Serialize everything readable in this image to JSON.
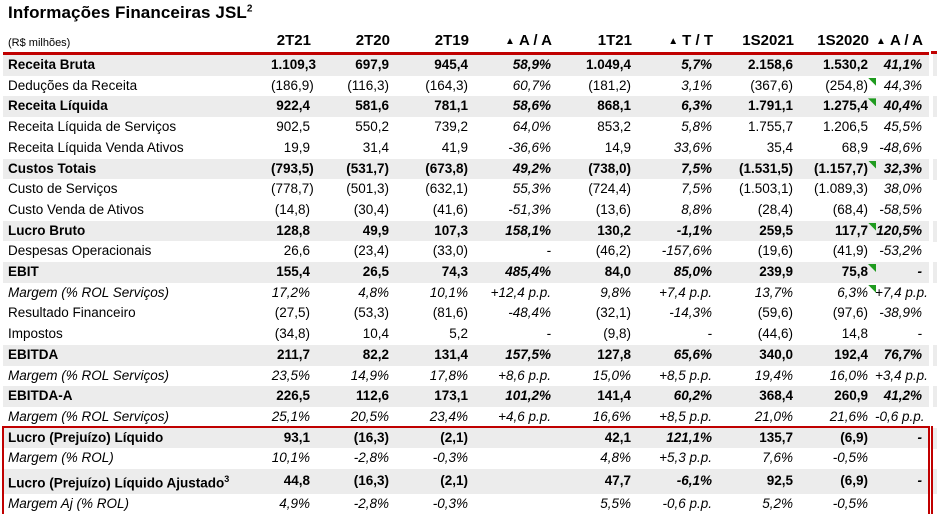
{
  "title": {
    "text": "Informações Financeiras JSL",
    "superscript": "2"
  },
  "unit_label": "(R$ milhões)",
  "delta_icon": "▲",
  "colors": {
    "accent_red": "#C00000",
    "row_shade": "#ECECEC",
    "flag_green": "#1F9B1F"
  },
  "columns": [
    {
      "label": "2T21",
      "delta": false
    },
    {
      "label": "2T20",
      "delta": false
    },
    {
      "label": "2T19",
      "delta": false
    },
    {
      "label": "A / A",
      "delta": true
    },
    {
      "label": "1T21",
      "delta": false
    },
    {
      "label": "T / T",
      "delta": true
    },
    {
      "label": "1S2021",
      "delta": false
    },
    {
      "label": "1S2020",
      "delta": false
    },
    {
      "label": "A / A",
      "delta": true
    }
  ],
  "rows": [
    {
      "label": "Receita Bruta",
      "bold": true,
      "shaded": true,
      "indent": 0,
      "values": [
        "1.109,3",
        "697,9",
        "945,4",
        "58,9%",
        "1.049,4",
        "5,7%",
        "2.158,6",
        "1.530,2",
        "41,1%"
      ]
    },
    {
      "label": "Deduções da Receita",
      "indent": 0,
      "flag_col": 7,
      "values": [
        "(186,9)",
        "(116,3)",
        "(164,3)",
        "60,7%",
        "(181,2)",
        "3,1%",
        "(367,6)",
        "(254,8)",
        "44,3%"
      ]
    },
    {
      "label": "Receita Líquida",
      "bold": true,
      "shaded": true,
      "indent": 0,
      "flag_col": 7,
      "values": [
        "922,4",
        "581,6",
        "781,1",
        "58,6%",
        "868,1",
        "6,3%",
        "1.791,1",
        "1.275,4",
        "40,4%"
      ]
    },
    {
      "label": "Receita Líquida de Serviços",
      "indent": 1,
      "values": [
        "902,5",
        "550,2",
        "739,2",
        "64,0%",
        "853,2",
        "5,8%",
        "1.755,7",
        "1.206,5",
        "45,5%"
      ]
    },
    {
      "label": "Receita Líquida Venda Ativos",
      "indent": 1,
      "values": [
        "19,9",
        "31,4",
        "41,9",
        "-36,6%",
        "14,9",
        "33,6%",
        "35,4",
        "68,9",
        "-48,6%"
      ]
    },
    {
      "label": "Custos Totais",
      "bold": true,
      "shaded": true,
      "indent": 0,
      "flag_col": 7,
      "values": [
        "(793,5)",
        "(531,7)",
        "(673,8)",
        "49,2%",
        "(738,0)",
        "7,5%",
        "(1.531,5)",
        "(1.157,7)",
        "32,3%"
      ]
    },
    {
      "label": "Custo de Serviços",
      "indent": 1,
      "values": [
        "(778,7)",
        "(501,3)",
        "(632,1)",
        "55,3%",
        "(724,4)",
        "7,5%",
        "(1.503,1)",
        "(1.089,3)",
        "38,0%"
      ]
    },
    {
      "label": "Custo Venda de Ativos",
      "indent": 1,
      "values": [
        "(14,8)",
        "(30,4)",
        "(41,6)",
        "-51,3%",
        "(13,6)",
        "8,8%",
        "(28,4)",
        "(68,4)",
        "-58,5%"
      ]
    },
    {
      "label": "Lucro Bruto",
      "bold": true,
      "shaded": true,
      "indent": 0,
      "flag_col": 7,
      "values": [
        "128,8",
        "49,9",
        "107,3",
        "158,1%",
        "130,2",
        "-1,1%",
        "259,5",
        "117,7",
        "120,5%"
      ]
    },
    {
      "label": "Despesas Operacionais",
      "indent": 0,
      "values": [
        "26,6",
        "(23,4)",
        "(33,0)",
        "-",
        "(46,2)",
        "-157,6%",
        "(19,6)",
        "(41,9)",
        "-53,2%"
      ]
    },
    {
      "label": "EBIT",
      "bold": true,
      "shaded": true,
      "indent": 0,
      "flag_col": 7,
      "values": [
        "155,4",
        "26,5",
        "74,3",
        "485,4%",
        "84,0",
        "85,0%",
        "239,9",
        "75,8",
        "-"
      ]
    },
    {
      "label": "Margem (% ROL Serviços)",
      "italic": true,
      "indent": 2,
      "flag_col": 7,
      "values": [
        "17,2%",
        "4,8%",
        "10,1%",
        "+12,4 p.p.",
        "9,8%",
        "+7,4 p.p.",
        "13,7%",
        "6,3%",
        "+7,4 p.p."
      ]
    },
    {
      "label": "Resultado Financeiro",
      "indent": 0,
      "values": [
        "(27,5)",
        "(53,3)",
        "(81,6)",
        "-48,4%",
        "(32,1)",
        "-14,3%",
        "(59,6)",
        "(97,6)",
        "-38,9%"
      ]
    },
    {
      "label": "Impostos",
      "indent": 0,
      "values": [
        "(34,8)",
        "10,4",
        "5,2",
        "-",
        "(9,8)",
        "-",
        "(44,6)",
        "14,8",
        "-"
      ]
    },
    {
      "label": "EBITDA",
      "bold": true,
      "shaded": true,
      "indent": 0,
      "values": [
        "211,7",
        "82,2",
        "131,4",
        "157,5%",
        "127,8",
        "65,6%",
        "340,0",
        "192,4",
        "76,7%"
      ]
    },
    {
      "label": "Margem (% ROL Serviços)",
      "italic": true,
      "indent": 2,
      "values": [
        "23,5%",
        "14,9%",
        "17,8%",
        "+8,6 p.p.",
        "15,0%",
        "+8,5 p.p.",
        "19,4%",
        "16,0%",
        "+3,4 p.p."
      ]
    },
    {
      "label": "EBITDA-A",
      "bold": true,
      "shaded": true,
      "indent": 0,
      "values": [
        "226,5",
        "112,6",
        "173,1",
        "101,2%",
        "141,4",
        "60,2%",
        "368,4",
        "260,9",
        "41,2%"
      ]
    },
    {
      "label": "Margem (% ROL Serviços)",
      "italic": true,
      "indent": 2,
      "values": [
        "25,1%",
        "20,5%",
        "23,4%",
        "+4,6 p.p.",
        "16,6%",
        "+8,5 p.p.",
        "21,0%",
        "21,6%",
        "-0,6 p.p."
      ]
    },
    {
      "label": "Lucro (Prejuízo) Líquido",
      "bold": true,
      "shaded": true,
      "indent": 0,
      "values": [
        "93,1",
        "(16,3)",
        "(2,1)",
        "",
        "42,1",
        "121,1%",
        "135,7",
        "(6,9)",
        "-"
      ]
    },
    {
      "label": "Margem (% ROL)",
      "italic": true,
      "indent": 2,
      "values": [
        "10,1%",
        "-2,8%",
        "-0,3%",
        "",
        "4,8%",
        "+5,3 p.p.",
        "7,6%",
        "-0,5%",
        ""
      ]
    },
    {
      "label": "Lucro (Prejuízo) Líquido Ajustado",
      "superscript": "3",
      "bold": true,
      "shaded": true,
      "indent": 0,
      "values": [
        "44,8",
        "(16,3)",
        "(2,1)",
        "",
        "47,7",
        "-6,1%",
        "92,5",
        "(6,9)",
        "-"
      ]
    },
    {
      "label": "Margem Aj (% ROL)",
      "italic": true,
      "indent": 0,
      "values": [
        "4,9%",
        "-2,8%",
        "-0,3%",
        "",
        "5,5%",
        "-0,6 p.p.",
        "5,2%",
        "-0,5%",
        ""
      ]
    }
  ],
  "highlight_box": {
    "first_row": 18,
    "last_row": 21
  }
}
